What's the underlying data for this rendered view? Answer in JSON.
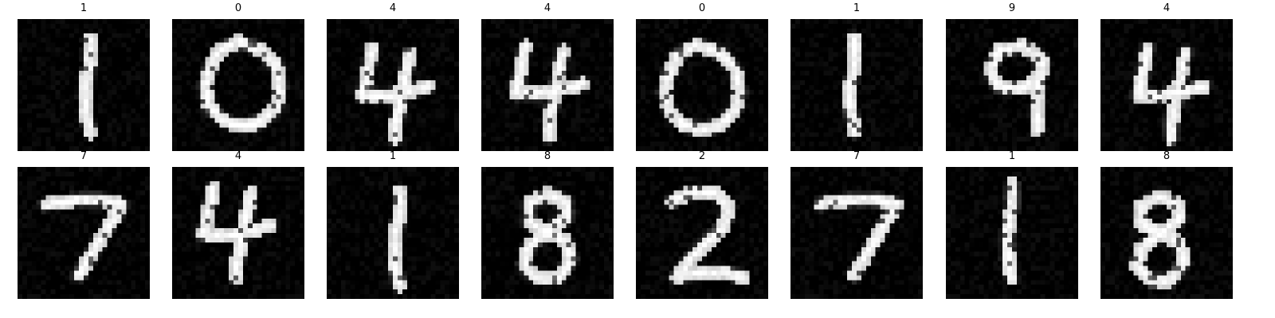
{
  "figure": {
    "rows": 2,
    "cols": 8,
    "panels": [
      {
        "label": "1",
        "digit": "1",
        "seed": 11
      },
      {
        "label": "0",
        "digit": "0",
        "seed": 12
      },
      {
        "label": "4",
        "digit": "4",
        "seed": 13
      },
      {
        "label": "4",
        "digit": "4",
        "seed": 14
      },
      {
        "label": "0",
        "digit": "0",
        "seed": 15
      },
      {
        "label": "1",
        "digit": "1",
        "seed": 16
      },
      {
        "label": "9",
        "digit": "9",
        "seed": 17
      },
      {
        "label": "4",
        "digit": "4",
        "seed": 18
      },
      {
        "label": "7",
        "digit": "7",
        "seed": 21
      },
      {
        "label": "4",
        "digit": "4",
        "seed": 22
      },
      {
        "label": "1",
        "digit": "1",
        "seed": 23
      },
      {
        "label": "8",
        "digit": "8",
        "seed": 24
      },
      {
        "label": "2",
        "digit": "2",
        "seed": 25
      },
      {
        "label": "7",
        "digit": "7",
        "seed": 26
      },
      {
        "label": "1",
        "digit": "1",
        "seed": 27
      },
      {
        "label": "8",
        "digit": "8",
        "seed": 28
      }
    ]
  },
  "style": {
    "background": "#000000",
    "foreground": "#ffffff",
    "title_color": "#000000"
  }
}
